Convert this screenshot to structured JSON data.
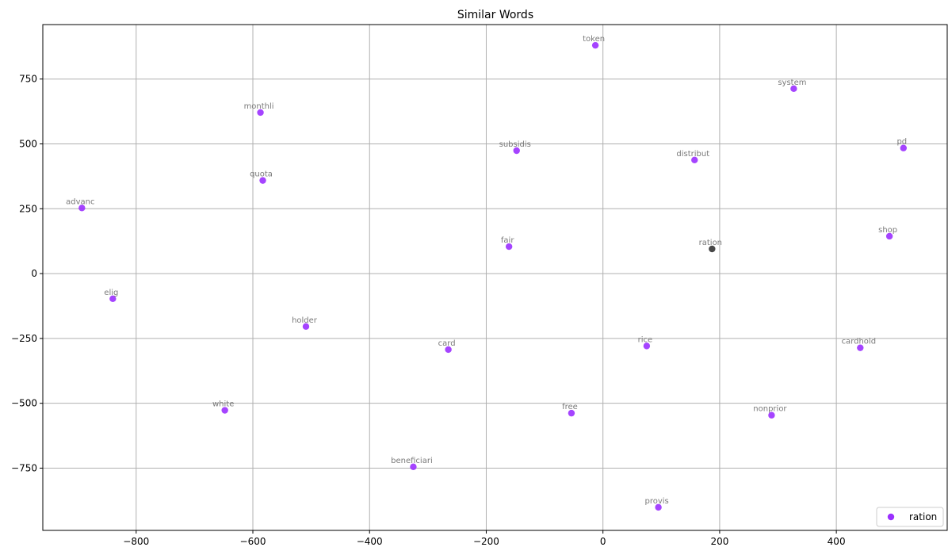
{
  "chart_data": {
    "type": "scatter",
    "title": "Similar Words",
    "xlabel": "",
    "ylabel": "",
    "xlim": [
      -960,
      590
    ],
    "ylim": [
      -990,
      960
    ],
    "x_ticks": [
      -800,
      -600,
      -400,
      -200,
      0,
      200,
      400
    ],
    "y_ticks": [
      -750,
      -500,
      -250,
      0,
      250,
      500,
      750
    ],
    "grid": true,
    "legend": {
      "placement": "lower-right",
      "entries": [
        "ration"
      ]
    },
    "colors": {
      "similar": "#9b30ff",
      "query": "#333333"
    },
    "query_word": "ration",
    "points": [
      {
        "label": "token",
        "x": -13,
        "y": 880
      },
      {
        "label": "system",
        "x": 327,
        "y": 713
      },
      {
        "label": "monthli",
        "x": -587,
        "y": 621
      },
      {
        "label": "pd",
        "x": 515,
        "y": 484
      },
      {
        "label": "subsidis",
        "x": -148,
        "y": 474
      },
      {
        "label": "distribut",
        "x": 157,
        "y": 438
      },
      {
        "label": "quota",
        "x": -583,
        "y": 359
      },
      {
        "label": "advanc",
        "x": -893,
        "y": 253
      },
      {
        "label": "shop",
        "x": 491,
        "y": 144
      },
      {
        "label": "fair",
        "x": -161,
        "y": 104
      },
      {
        "label": "ration",
        "x": 187,
        "y": 95,
        "query": true
      },
      {
        "label": "elig",
        "x": -840,
        "y": -97
      },
      {
        "label": "holder",
        "x": -509,
        "y": -204
      },
      {
        "label": "rice",
        "x": 75,
        "y": -279
      },
      {
        "label": "cardhold",
        "x": 441,
        "y": -286
      },
      {
        "label": "card",
        "x": -265,
        "y": -293
      },
      {
        "label": "white",
        "x": -648,
        "y": -527
      },
      {
        "label": "free",
        "x": -54,
        "y": -538
      },
      {
        "label": "nonprior",
        "x": 289,
        "y": -546
      },
      {
        "label": "beneficiari",
        "x": -325,
        "y": -745
      },
      {
        "label": "provis",
        "x": 95,
        "y": -901
      }
    ]
  }
}
